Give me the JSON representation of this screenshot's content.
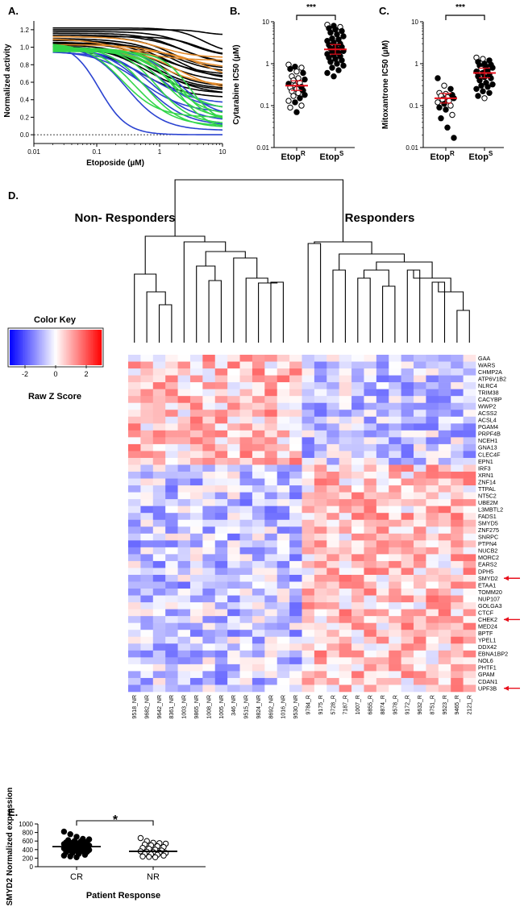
{
  "chart_data": [
    {
      "panel": "A.",
      "type": "line",
      "xlabel": "Etoposide (µM)",
      "ylabel": "Normalized activity",
      "xscale": "log",
      "xlim": [
        0.01,
        10
      ],
      "ylim": [
        -0.1,
        1.3
      ],
      "xticks": [
        "0.01",
        "0.1",
        "1",
        "10"
      ],
      "yticks": [
        "0.0",
        "0.2",
        "0.4",
        "0.6",
        "0.8",
        "1.0",
        "1.2"
      ],
      "baseline": 0.0,
      "groups": [
        {
          "name": "black",
          "color": "#000000",
          "curves": [
            {
              "top": 1.22,
              "bottom": 0.92,
              "ec50": 5,
              "hill": 2
            },
            {
              "top": 1.2,
              "bottom": 1.14,
              "ec50": 5,
              "hill": 3
            },
            {
              "top": 1.18,
              "bottom": 0.88,
              "ec50": 3,
              "hill": 1.5
            },
            {
              "top": 1.16,
              "bottom": 0.82,
              "ec50": 2,
              "hill": 1.5
            },
            {
              "top": 1.14,
              "bottom": 0.78,
              "ec50": 2.5,
              "hill": 1.3
            },
            {
              "top": 1.12,
              "bottom": 0.75,
              "ec50": 1.5,
              "hill": 1.5
            },
            {
              "top": 1.1,
              "bottom": 0.7,
              "ec50": 1.5,
              "hill": 1.2
            },
            {
              "top": 1.08,
              "bottom": 0.65,
              "ec50": 1.2,
              "hill": 1.3
            },
            {
              "top": 1.06,
              "bottom": 0.6,
              "ec50": 1,
              "hill": 1.2
            },
            {
              "top": 1.04,
              "bottom": 0.55,
              "ec50": 1,
              "hill": 1.5
            },
            {
              "top": 1.03,
              "bottom": 0.52,
              "ec50": 0.8,
              "hill": 1.3
            },
            {
              "top": 1.02,
              "bottom": 0.5,
              "ec50": 0.7,
              "hill": 1.2
            },
            {
              "top": 1.01,
              "bottom": 0.47,
              "ec50": 0.6,
              "hill": 1.3
            },
            {
              "top": 1.0,
              "bottom": 0.45,
              "ec50": 0.9,
              "hill": 1.1
            },
            {
              "top": 0.99,
              "bottom": 0.42,
              "ec50": 0.5,
              "hill": 1.2
            },
            {
              "top": 1.05,
              "bottom": 0.62,
              "ec50": 2,
              "hill": 1.4
            },
            {
              "top": 1.12,
              "bottom": 0.9,
              "ec50": 4,
              "hill": 2
            },
            {
              "top": 1.09,
              "bottom": 0.68,
              "ec50": 0.9,
              "hill": 1.2
            }
          ]
        },
        {
          "name": "orange",
          "color": "#e38b2c",
          "curves": [
            {
              "top": 1.12,
              "bottom": 0.88,
              "ec50": 1,
              "hill": 1.5
            },
            {
              "top": 1.1,
              "bottom": 0.85,
              "ec50": 0.3,
              "hill": 1.2
            },
            {
              "top": 1.03,
              "bottom": 0.75,
              "ec50": 2,
              "hill": 1.2
            },
            {
              "top": 1.0,
              "bottom": 0.55,
              "ec50": 1,
              "hill": 1.2
            },
            {
              "top": 0.98,
              "bottom": 0.5,
              "ec50": 2,
              "hill": 1.3
            },
            {
              "top": 0.97,
              "bottom": 0.62,
              "ec50": 5,
              "hill": 1.5
            }
          ]
        },
        {
          "name": "blue",
          "color": "#2b43d1",
          "curves": [
            {
              "top": 1.05,
              "bottom": 0.0,
              "ec50": 0.11,
              "hill": 2
            },
            {
              "top": 1.02,
              "bottom": 0.05,
              "ec50": 0.3,
              "hill": 1.5
            },
            {
              "top": 1.0,
              "bottom": 0.1,
              "ec50": 0.6,
              "hill": 1.3
            },
            {
              "top": 0.98,
              "bottom": 0.15,
              "ec50": 0.8,
              "hill": 1.3
            },
            {
              "top": 0.96,
              "bottom": 0.25,
              "ec50": 0.5,
              "hill": 1.2
            },
            {
              "top": 1.0,
              "bottom": 0.3,
              "ec50": 1,
              "hill": 1.5
            },
            {
              "top": 0.95,
              "bottom": 0.35,
              "ec50": 0.7,
              "hill": 1.2
            },
            {
              "top": 0.98,
              "bottom": 0.2,
              "ec50": 2,
              "hill": 1.5
            }
          ]
        },
        {
          "name": "green",
          "color": "#33d64a",
          "curves": [
            {
              "top": 1.05,
              "bottom": 0.2,
              "ec50": 0.25,
              "hill": 1.5
            },
            {
              "top": 1.03,
              "bottom": 0.1,
              "ec50": 0.4,
              "hill": 1.4
            },
            {
              "top": 1.01,
              "bottom": 0.08,
              "ec50": 0.6,
              "hill": 1.5
            },
            {
              "top": 1.0,
              "bottom": 0.12,
              "ec50": 0.9,
              "hill": 1.6
            },
            {
              "top": 0.99,
              "bottom": 0.18,
              "ec50": 1.2,
              "hill": 1.5
            },
            {
              "top": 0.98,
              "bottom": 0.22,
              "ec50": 1.5,
              "hill": 1.6
            },
            {
              "top": 0.97,
              "bottom": 0.15,
              "ec50": 2,
              "hill": 1.8
            },
            {
              "top": 0.96,
              "bottom": 0.28,
              "ec50": 1.5,
              "hill": 1.5
            },
            {
              "top": 0.95,
              "bottom": 0.12,
              "ec50": 3,
              "hill": 2
            },
            {
              "top": 0.99,
              "bottom": 0.05,
              "ec50": 1.8,
              "hill": 1.7
            }
          ]
        }
      ]
    },
    {
      "panel": "B.",
      "type": "scatter",
      "ylabel": "Cytarabine IC50 (µM)",
      "yscale": "log",
      "ylim": [
        0.01,
        10
      ],
      "yticks": [
        "0.01",
        "0.1",
        "1",
        "10"
      ],
      "categories": [
        "Etop",
        "Etop"
      ],
      "category_sup": [
        "R",
        "S"
      ],
      "significance": "***",
      "series": [
        {
          "name": "EtopR",
          "mean": 0.3,
          "values": [
            0.95,
            0.85,
            0.8,
            0.75,
            0.65,
            0.6,
            0.5,
            0.45,
            0.42,
            0.4,
            0.35,
            0.33,
            0.3,
            0.28,
            0.27,
            0.25,
            0.23,
            0.22,
            0.2,
            0.18,
            0.17,
            0.15,
            0.13,
            0.12,
            0.1,
            0.09,
            0.07
          ],
          "filled": [
            false,
            true,
            false,
            true,
            false,
            true,
            false,
            false,
            true,
            false,
            false,
            true,
            false,
            true,
            false,
            false,
            true,
            false,
            false,
            true,
            false,
            true,
            false,
            true,
            false,
            false,
            true
          ]
        },
        {
          "name": "EtopS",
          "mean": 2.2,
          "values": [
            8.5,
            8,
            7.5,
            7,
            6.5,
            6,
            5.5,
            5,
            4.5,
            4,
            3.8,
            3.5,
            3.2,
            3,
            2.8,
            2.6,
            2.5,
            2.3,
            2.2,
            2,
            1.9,
            1.8,
            1.7,
            1.6,
            1.5,
            1.4,
            1.3,
            1.2,
            1.1,
            1,
            0.9,
            0.8,
            0.7,
            0.6,
            0.5
          ],
          "filled": [
            false,
            true,
            false,
            true,
            true,
            true,
            true,
            true,
            true,
            true,
            true,
            true,
            true,
            true,
            true,
            true,
            true,
            true,
            true,
            true,
            true,
            true,
            true,
            true,
            true,
            true,
            true,
            true,
            true,
            true,
            true,
            true,
            true,
            true,
            true
          ]
        }
      ]
    },
    {
      "panel": "C.",
      "type": "scatter",
      "ylabel": "Mitoxantrone IC50 (µM)",
      "yscale": "log",
      "ylim": [
        0.01,
        10
      ],
      "yticks": [
        "0.01",
        "0.1",
        "1",
        "10"
      ],
      "categories": [
        "Etop",
        "Etop"
      ],
      "category_sup": [
        "R",
        "S"
      ],
      "significance": "***",
      "series": [
        {
          "name": "EtopR",
          "mean": 0.15,
          "values": [
            0.45,
            0.3,
            0.25,
            0.2,
            0.19,
            0.18,
            0.17,
            0.16,
            0.15,
            0.14,
            0.13,
            0.12,
            0.11,
            0.1,
            0.09,
            0.08,
            0.06,
            0.05,
            0.03,
            0.017
          ],
          "filled": [
            true,
            false,
            true,
            false,
            false,
            true,
            false,
            false,
            true,
            false,
            false,
            false,
            true,
            false,
            true,
            true,
            false,
            true,
            true,
            true
          ]
        },
        {
          "name": "EtopS",
          "mean": 0.6,
          "values": [
            1.4,
            1.3,
            1.2,
            1.1,
            1.0,
            0.95,
            0.9,
            0.85,
            0.8,
            0.75,
            0.7,
            0.65,
            0.6,
            0.55,
            0.5,
            0.48,
            0.45,
            0.4,
            0.35,
            0.32,
            0.3,
            0.28,
            0.25,
            0.22,
            0.2,
            0.17,
            0.15
          ],
          "filled": [
            false,
            false,
            true,
            true,
            true,
            true,
            true,
            true,
            true,
            false,
            true,
            true,
            true,
            true,
            true,
            true,
            true,
            true,
            true,
            true,
            true,
            true,
            true,
            true,
            true,
            true,
            false
          ]
        }
      ]
    },
    {
      "panel": "D.",
      "type": "heatmap",
      "cluster_labels": [
        "Non- Responders",
        "Responders"
      ],
      "color_key": {
        "title": "Color Key",
        "subtitle": "Raw Z Score",
        "ticks": [
          "-2",
          "0",
          "2"
        ],
        "range": [
          -3,
          3
        ],
        "low": "#0000ff",
        "mid": "#ffffff",
        "high": "#ff0000"
      },
      "samples": [
        "9518_NR",
        "9682_NR",
        "9642_NR",
        "8361_NR",
        "1003_NR",
        "9865_NR",
        "1008_NR",
        "1005_NR",
        "346_NR",
        "9515_NR",
        "9824_NR",
        "8692_NR",
        "1016_NR",
        "9530_NR",
        "9784_R",
        "9175_R",
        "5728_R",
        "7187_R",
        "1007_R",
        "6855_R",
        "8874_R",
        "9578_R",
        "9172_R",
        "9632_R",
        "8751_R",
        "9523_R",
        "9465_R",
        "2121_R"
      ],
      "genes": [
        "GAA",
        "WARS",
        "CHMP2A",
        "ATP6V1B2",
        "NLRC4",
        "TRIM38",
        "CACYBP",
        "WWP2",
        "ACSS2",
        "ACSL4",
        "PGAM4",
        "PRPF4B",
        "NCEH1",
        "GNA13",
        "CLEC4F",
        "EPN1",
        "IRF3",
        "XRN1",
        "ZNF14",
        "TTPAL",
        "NT5C2",
        "UBE2M",
        "L3MBTL2",
        "FADS1",
        "SMYD5",
        "ZNF275",
        "SNRPC",
        "PTPN4",
        "NUCB2",
        "MORC2",
        "EARS2",
        "DPH5",
        "SMYD2",
        "ETAA1",
        "TOMM20",
        "NUP107",
        "GOLGA3",
        "CTCF",
        "CHEK2",
        "MED24",
        "BPTF",
        "YPEL1",
        "DDX42",
        "EBNA1BP2",
        "NOL6",
        "PHTF1",
        "GPAM",
        "CDAN1",
        "UPF3B"
      ],
      "highlighted_genes": [
        "SMYD2",
        "CHEK2",
        "UPF3B"
      ],
      "highlight_color": "#e8101c",
      "n_up_genes": 16,
      "n_nr": 14
    },
    {
      "panel": "E.",
      "type": "scatter",
      "xlabel": "Patient Response",
      "ylabel": "SMYD2 Normalized expression",
      "ylim": [
        0,
        1000
      ],
      "yticks": [
        "0",
        "200",
        "400",
        "600",
        "800",
        "1000"
      ],
      "categories": [
        "CR",
        "NR"
      ],
      "significance": "*",
      "series": [
        {
          "name": "CR",
          "mean": 470,
          "filled": true,
          "values": [
            820,
            760,
            700,
            650,
            640,
            620,
            600,
            590,
            580,
            570,
            560,
            550,
            540,
            530,
            520,
            510,
            500,
            495,
            490,
            480,
            470,
            465,
            460,
            455,
            450,
            440,
            430,
            420,
            410,
            400,
            390,
            380,
            370,
            360,
            350,
            340,
            320,
            300,
            280,
            260,
            240,
            220
          ]
        },
        {
          "name": "NR",
          "mean": 360,
          "filled": false,
          "values": [
            670,
            600,
            560,
            550,
            540,
            520,
            500,
            480,
            460,
            440,
            420,
            400,
            380,
            360,
            350,
            340,
            330,
            320,
            300,
            290,
            280,
            260,
            240,
            230,
            220
          ]
        }
      ]
    }
  ]
}
